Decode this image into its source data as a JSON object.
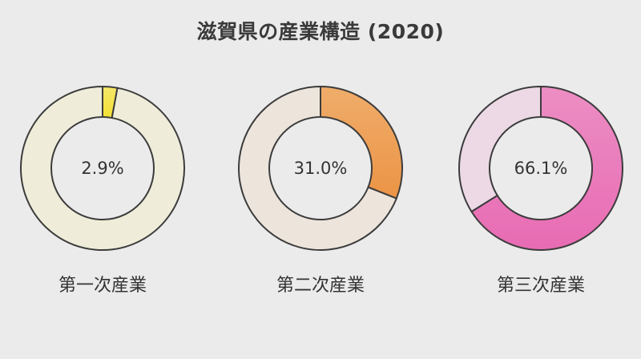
{
  "chart_data": {
    "type": "donut",
    "title": "滋賀県の産業構造 (2020)",
    "categories": [
      "第一次産業",
      "第二次産業",
      "第三次産業"
    ],
    "values": [
      2.9,
      31.0,
      66.1
    ],
    "value_labels": [
      "2.9%",
      "31.0%",
      "66.1%"
    ],
    "colors": {
      "slices": [
        "#f3e134",
        "#ec9446",
        "#e86bb3"
      ],
      "slice_highlights": [
        "#f5e66a",
        "#efad6a",
        "#ec8ec4"
      ],
      "tracks": [
        "#efedd9",
        "#ede5dc",
        "#ecd9e5"
      ],
      "outline": "#3c3c3c",
      "background": "#ebebeb"
    }
  }
}
